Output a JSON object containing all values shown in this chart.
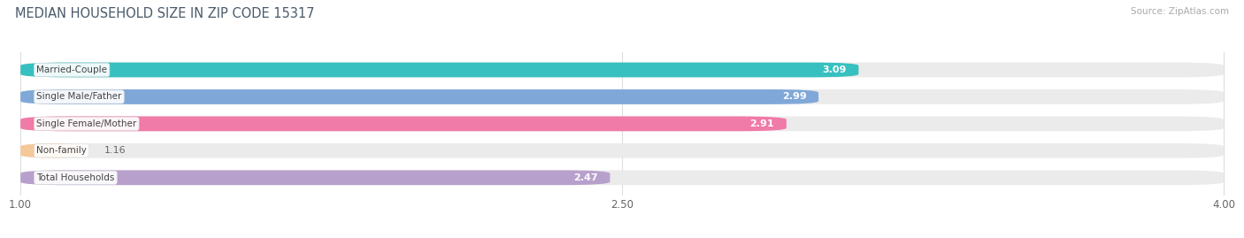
{
  "title": "MEDIAN HOUSEHOLD SIZE IN ZIP CODE 15317",
  "source": "Source: ZipAtlas.com",
  "categories": [
    "Married-Couple",
    "Single Male/Father",
    "Single Female/Mother",
    "Non-family",
    "Total Households"
  ],
  "values": [
    3.09,
    2.99,
    2.91,
    1.16,
    2.47
  ],
  "bar_colors": [
    "#38c0c0",
    "#7fa8d8",
    "#f07aa8",
    "#f5c89a",
    "#b8a0cc"
  ],
  "bg_color": "#ffffff",
  "bar_bg_color": "#ebebeb",
  "xlim_min": 1.0,
  "xlim_max": 4.0,
  "xticks": [
    1.0,
    2.5,
    4.0
  ],
  "xtick_labels": [
    "1.00",
    "2.50",
    "4.00"
  ],
  "label_text_color": "#666666",
  "title_color": "#4a5a6a",
  "source_color": "#aaaaaa",
  "bar_height": 0.55,
  "bar_gap": 0.45,
  "value_label_inside_color": "#ffffff",
  "value_label_outside_color": "#666666",
  "cat_label_color": "#444444",
  "cat_label_bg": "#ffffff"
}
